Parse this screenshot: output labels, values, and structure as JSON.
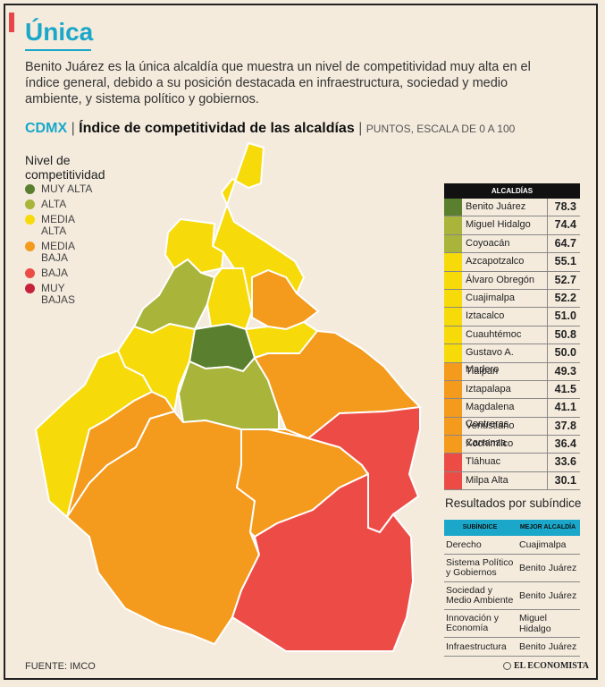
{
  "headline": "Única",
  "intro": "Benito Juárez es la única alcaldía que muestra un nivel de competitividad muy alta en el índice general, debido a su posición destacada en infraestructura, sociedad y medio ambiente, y sistema político y gobiernos.",
  "subhead": {
    "prefix": "CDMX",
    "title": "Índice de competitividad de las alcaldías",
    "units": "PUNTOS, ESCALA DE 0 A 100"
  },
  "legend": {
    "title_line1": "Nivel de",
    "title_line2": "competitividad",
    "items": [
      {
        "label": "MUY ALTA",
        "color": "#5a7f2e"
      },
      {
        "label": "ALTA",
        "color": "#a8b43a"
      },
      {
        "label": "MEDIA ALTA",
        "color": "#f7da0a"
      },
      {
        "label": "MEDIA BAJA",
        "color": "#f49a1c"
      },
      {
        "label": "BAJA",
        "color": "#ec4b46"
      },
      {
        "label": "MUY BAJAS",
        "color": "#c6223a"
      }
    ]
  },
  "chart_data": {
    "type": "table",
    "title": "Índice de competitividad de las alcaldías",
    "header": "ALCALDÍAS",
    "units": "puntos, escala de 0 a 100",
    "categories": [
      "Benito Juárez",
      "Miguel Hidalgo",
      "Coyoacán",
      "Azcapotzalco",
      "Álvaro Obregón",
      "Cuajimalpa",
      "Iztacalco",
      "Cuauhtémoc",
      "Gustavo A. Madero",
      "Tlalpan",
      "Iztapalapa",
      "Magdalena Contreras",
      "Venustiano Carranza",
      "Xochimilco",
      "Tláhuac",
      "Milpa Alta"
    ],
    "values": [
      "78.3",
      "74.4",
      "64.7",
      "55.1",
      "52.7",
      "52.2",
      "51.0",
      "50.8",
      "50.0",
      "49.3",
      "41.5",
      "41.1",
      "37.8",
      "36.4",
      "33.6",
      "30.1"
    ],
    "levels": [
      "MUY ALTA",
      "ALTA",
      "ALTA",
      "MEDIA ALTA",
      "MEDIA ALTA",
      "MEDIA ALTA",
      "MEDIA ALTA",
      "MEDIA ALTA",
      "MEDIA ALTA",
      "MEDIA BAJA",
      "MEDIA BAJA",
      "MEDIA BAJA",
      "MEDIA BAJA",
      "MEDIA BAJA",
      "BAJA",
      "BAJA"
    ]
  },
  "results": {
    "title": "Resultados por subíndice",
    "col1": "SUBÍNDICE",
    "col2": "MEJOR ALCALDÍA",
    "rows": [
      {
        "sub": "Derecho",
        "best": "Cuajimalpa"
      },
      {
        "sub": "Sistema Político y Gobiernos",
        "best": "Benito Juárez"
      },
      {
        "sub": "Sociedad y Medio Ambiente",
        "best": "Benito Juárez"
      },
      {
        "sub": "Innovación y Economía",
        "best": "Miguel Hidalgo"
      },
      {
        "sub": "Infraestructura",
        "best": "Benito Juárez"
      }
    ]
  },
  "source": "FUENTE: IMCO",
  "brand": "EL ECONOMISTA"
}
